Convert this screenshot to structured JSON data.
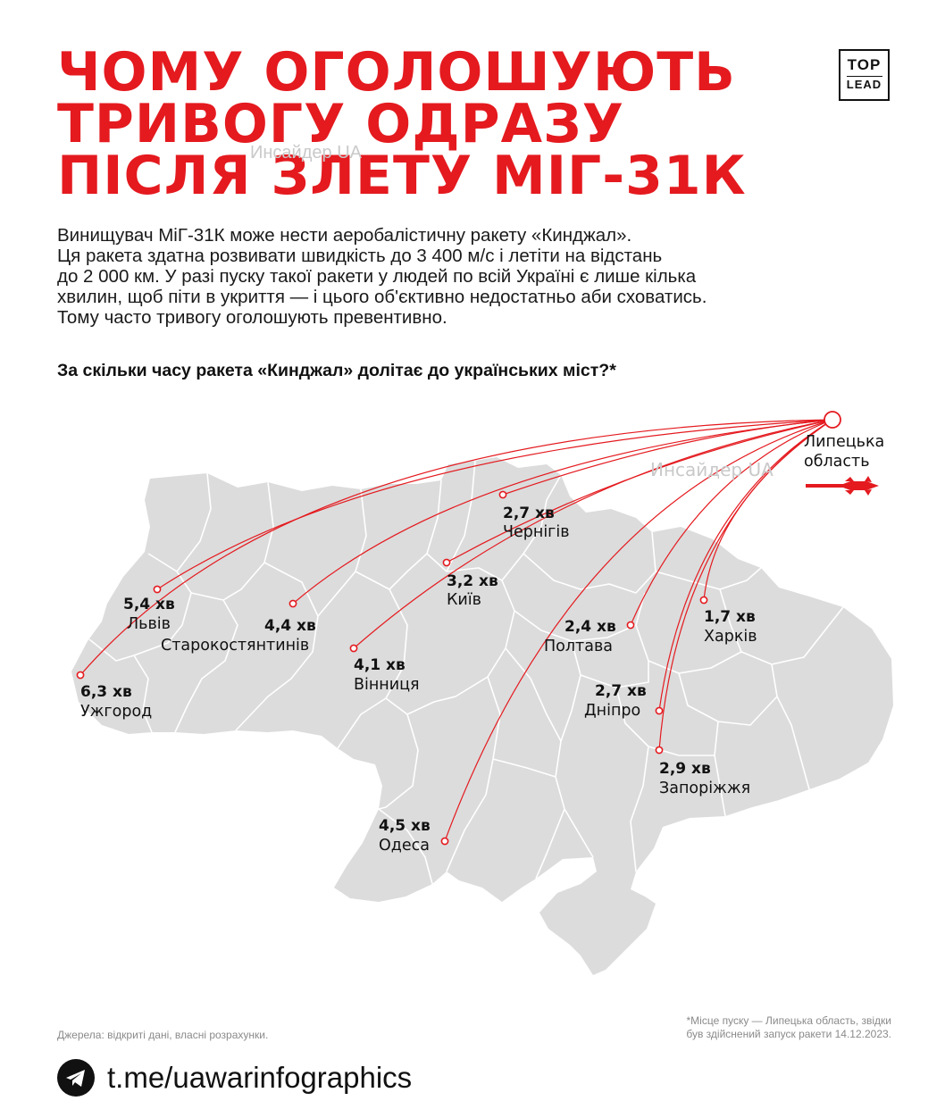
{
  "title_lines": [
    "ЧОМУ ОГОЛОШУЮТЬ",
    "ТРИВОГУ ОДРАЗУ",
    "ПІСЛЯ ЗЛЕТУ МІГ-31К"
  ],
  "logo": {
    "top": "TOP",
    "bottom": "LEAD"
  },
  "watermark": "Инсайдер UA",
  "intro_lines": [
    "Винищувач МіГ-31К може нести аеробалістичну ракету «Кинджал».",
    "Ця ракета здатна розвивати швидкість до 3 400 м/с і летіти на відстань",
    "до 2 000 км. У разі пуску такої ракети у людей по всій Україні є лише кілька",
    "хвилин, щоб піти в укриття — і цього об'єктивно недостатньо аби сховатись.",
    "Тому часто тривогу оголошують превентивно."
  ],
  "question": "За скільки часу ракета «Кинджал» долітає до українських міст?*",
  "origin": {
    "line1": "Липецька",
    "line2": "область"
  },
  "cities": [
    {
      "name": "Львів",
      "time": "5,4 хв"
    },
    {
      "name": "Старокостянтинів",
      "time": "4,4 хв"
    },
    {
      "name": "Ужгород",
      "time": "6,3 хв"
    },
    {
      "name": "Вінниця",
      "time": "4,1 хв"
    },
    {
      "name": "Київ",
      "time": "3,2 хв"
    },
    {
      "name": "Чернігів",
      "time": "2,7 хв"
    },
    {
      "name": "Полтава",
      "time": "2,4 хв"
    },
    {
      "name": "Харків",
      "time": "1,7 хв"
    },
    {
      "name": "Дніпро",
      "time": "2,7 хв"
    },
    {
      "name": "Запоріжжя",
      "time": "2,9 хв"
    },
    {
      "name": "Одеса",
      "time": "4,5 хв"
    }
  ],
  "sources": "Джерела: відкриті дані, власні розрахунки.",
  "footnote_lines": [
    "*Місце пуску — Липецька область, звідки",
    "був здійснений запуск ракети 14.12.2023."
  ],
  "channel": "t.me/uawarinfographics",
  "colors": {
    "accent": "#e41a1f",
    "map_fill": "#dcdcdc",
    "map_borders": "#ffffff",
    "text": "#111111"
  },
  "icons": {
    "telegram": "telegram-icon",
    "missile": "missile-icon"
  }
}
